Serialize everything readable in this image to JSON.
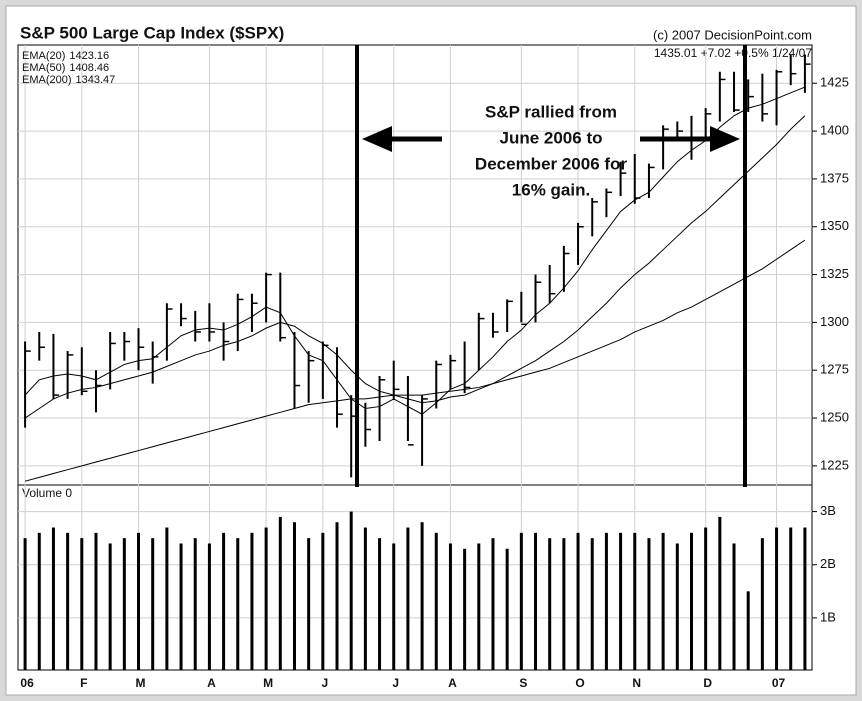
{
  "chart_data": [
    {
      "type": "ohlc",
      "title": "S&P 500 Large Cap Index ($SPX)",
      "subtitle": "(c) 2007 DecisionPoint.com",
      "quote": "1435.01 +7.02 +0.5% 1/24/07",
      "annotation": [
        "S&P rallied from",
        "June 2006 to",
        "December 2006 for",
        "16% gain."
      ],
      "color": "#000000",
      "high": [
        1290,
        1295,
        1294,
        1285,
        1287,
        1275,
        1295,
        1295,
        1297,
        1290,
        1310,
        1310,
        1306,
        1310,
        1300,
        1315,
        1315,
        1326,
        1326,
        1295,
        1285,
        1290,
        1287,
        1262,
        1258,
        1272,
        1280,
        1272,
        1262,
        1280,
        1283,
        1290,
        1305,
        1305,
        1312,
        1316,
        1325,
        1330,
        1340,
        1352,
        1365,
        1370,
        1384,
        1388,
        1383,
        1403,
        1405,
        1408,
        1412,
        1431,
        1431,
        1427,
        1430,
        1432,
        1440,
        1440
      ],
      "low": [
        1245,
        1280,
        1260,
        1260,
        1262,
        1253,
        1265,
        1280,
        1275,
        1268,
        1280,
        1298,
        1290,
        1290,
        1280,
        1285,
        1295,
        1300,
        1290,
        1255,
        1258,
        1260,
        1245,
        1219,
        1235,
        1238,
        1260,
        1238,
        1225,
        1255,
        1265,
        1263,
        1275,
        1292,
        1295,
        1300,
        1300,
        1310,
        1316,
        1330,
        1345,
        1355,
        1366,
        1362,
        1365,
        1380,
        1395,
        1385,
        1395,
        1405,
        1410,
        1410,
        1405,
        1403,
        1424,
        1420
      ],
      "close": [
        1285,
        1287,
        1262,
        1283,
        1264,
        1267,
        1289,
        1290,
        1287,
        1282,
        1307,
        1302,
        1295,
        1295,
        1290,
        1312,
        1310,
        1325,
        1292,
        1267,
        1280,
        1288,
        1252,
        1251,
        1244,
        1270,
        1265,
        1236,
        1260,
        1278,
        1280,
        1266,
        1302,
        1295,
        1311,
        1299,
        1321,
        1315,
        1336,
        1350,
        1363,
        1368,
        1378,
        1365,
        1381,
        1401,
        1400,
        1396,
        1409,
        1427,
        1411,
        1418,
        1409,
        1431,
        1430,
        1435
      ],
      "series": [
        {
          "name": "EMA(20)",
          "legend_value": "1423.16",
          "color": "#000000",
          "values": [
            1262,
            1270,
            1272,
            1273,
            1272,
            1270,
            1274,
            1278,
            1280,
            1281,
            1287,
            1293,
            1296,
            1297,
            1296,
            1299,
            1303,
            1308,
            1305,
            1293,
            1283,
            1280,
            1270,
            1260,
            1255,
            1256,
            1260,
            1256,
            1252,
            1258,
            1265,
            1268,
            1275,
            1282,
            1290,
            1296,
            1304,
            1310,
            1318,
            1327,
            1338,
            1348,
            1358,
            1364,
            1368,
            1376,
            1384,
            1390,
            1395,
            1402,
            1408,
            1412,
            1414,
            1417,
            1420,
            1423
          ]
        },
        {
          "name": "EMA(50)",
          "legend_value": "1408.46",
          "color": "#000000",
          "values": [
            1250,
            1255,
            1260,
            1263,
            1265,
            1266,
            1268,
            1270,
            1272,
            1274,
            1277,
            1280,
            1283,
            1285,
            1288,
            1290,
            1293,
            1297,
            1300,
            1298,
            1293,
            1289,
            1283,
            1275,
            1268,
            1264,
            1262,
            1260,
            1258,
            1259,
            1261,
            1262,
            1265,
            1268,
            1272,
            1276,
            1280,
            1285,
            1290,
            1296,
            1303,
            1310,
            1318,
            1325,
            1331,
            1338,
            1345,
            1352,
            1358,
            1365,
            1372,
            1379,
            1386,
            1393,
            1401,
            1408
          ]
        },
        {
          "name": "EMA(200)",
          "legend_value": "1343.47",
          "color": "#000000",
          "values": [
            1217,
            1219,
            1221,
            1223,
            1225,
            1227,
            1229,
            1231,
            1233,
            1235,
            1237,
            1239,
            1241,
            1243,
            1245,
            1247,
            1249,
            1251,
            1253,
            1255,
            1257,
            1258,
            1259,
            1260,
            1260,
            1261,
            1262,
            1262,
            1262,
            1263,
            1264,
            1265,
            1266,
            1268,
            1270,
            1272,
            1274,
            1276,
            1279,
            1282,
            1285,
            1288,
            1291,
            1295,
            1298,
            1301,
            1305,
            1308,
            1312,
            1316,
            1320,
            1324,
            1328,
            1333,
            1338,
            1343
          ]
        }
      ],
      "ylim": [
        1215,
        1445
      ],
      "yticks": [
        1225,
        1250,
        1275,
        1300,
        1325,
        1350,
        1375,
        1400,
        1425
      ],
      "grid": true
    },
    {
      "type": "bar",
      "title": "Volume 0",
      "color": "#000000",
      "categories": [
        "06",
        null,
        null,
        null,
        "F",
        null,
        null,
        null,
        "M",
        null,
        null,
        null,
        null,
        "A",
        null,
        null,
        null,
        "M",
        null,
        null,
        null,
        "J",
        null,
        null,
        null,
        null,
        "J",
        null,
        null,
        null,
        "A",
        null,
        null,
        null,
        null,
        "S",
        null,
        null,
        null,
        "O",
        null,
        null,
        null,
        "N",
        null,
        null,
        null,
        null,
        "D",
        null,
        null,
        null,
        null,
        "07",
        null,
        null
      ],
      "values": [
        2.5,
        2.6,
        2.7,
        2.6,
        2.5,
        2.6,
        2.4,
        2.5,
        2.6,
        2.5,
        2.7,
        2.4,
        2.5,
        2.4,
        2.6,
        2.5,
        2.6,
        2.7,
        2.9,
        2.8,
        2.5,
        2.6,
        2.8,
        3.0,
        2.7,
        2.5,
        2.4,
        2.7,
        2.8,
        2.6,
        2.4,
        2.3,
        2.4,
        2.5,
        2.3,
        2.6,
        2.6,
        2.5,
        2.5,
        2.6,
        2.5,
        2.6,
        2.6,
        2.6,
        2.5,
        2.6,
        2.4,
        2.6,
        2.7,
        2.9,
        2.4,
        1.5,
        2.5,
        2.7,
        2.7,
        2.7
      ],
      "ylim": [
        0.02,
        3.5
      ],
      "yticks": [
        {
          "value": 1,
          "label": "1B"
        },
        {
          "value": 2,
          "label": "2B"
        },
        {
          "value": 3,
          "label": "3B"
        }
      ],
      "grid": true
    }
  ]
}
